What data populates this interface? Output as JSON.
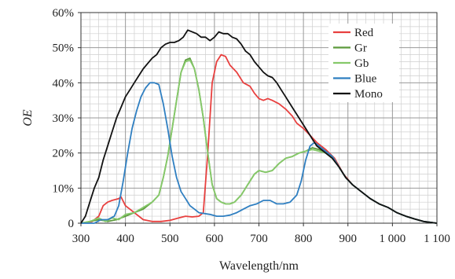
{
  "chart_data": {
    "type": "line",
    "title": "",
    "xlabel": "Wavelength/nm",
    "ylabel": "OE",
    "xlim": [
      300,
      1100
    ],
    "ylim": [
      0,
      60
    ],
    "grid": true,
    "legend_position": "top-right",
    "x_tick_labels": [
      "300",
      "400",
      "500",
      "600",
      "700",
      "800",
      "900",
      "1 000",
      "1 100"
    ],
    "y_tick_labels": [
      "0",
      "10%",
      "20%",
      "30%",
      "40%",
      "50%",
      "60%"
    ],
    "series": [
      {
        "name": "Red",
        "color": "#e8403f",
        "points": [
          [
            300,
            0
          ],
          [
            325,
            0.5
          ],
          [
            340,
            2
          ],
          [
            350,
            5
          ],
          [
            360,
            6
          ],
          [
            370,
            6.5
          ],
          [
            385,
            7
          ],
          [
            390,
            7.5
          ],
          [
            400,
            5
          ],
          [
            420,
            3
          ],
          [
            440,
            1
          ],
          [
            460,
            0.5
          ],
          [
            480,
            0.5
          ],
          [
            500,
            0.8
          ],
          [
            520,
            1.5
          ],
          [
            535,
            2
          ],
          [
            550,
            1.8
          ],
          [
            565,
            2
          ],
          [
            575,
            3
          ],
          [
            585,
            20
          ],
          [
            595,
            40
          ],
          [
            605,
            46
          ],
          [
            615,
            48
          ],
          [
            625,
            47.5
          ],
          [
            635,
            45
          ],
          [
            650,
            43
          ],
          [
            665,
            40
          ],
          [
            680,
            39
          ],
          [
            690,
            37
          ],
          [
            700,
            35.5
          ],
          [
            710,
            35
          ],
          [
            720,
            35.5
          ],
          [
            730,
            35
          ],
          [
            745,
            34
          ],
          [
            760,
            32.5
          ],
          [
            775,
            30.5
          ],
          [
            785,
            28.5
          ],
          [
            800,
            27
          ],
          [
            815,
            25
          ],
          [
            830,
            23
          ],
          [
            850,
            21
          ],
          [
            870,
            18.5
          ],
          [
            890,
            14
          ],
          [
            910,
            11
          ],
          [
            930,
            9
          ],
          [
            950,
            7
          ],
          [
            970,
            5.5
          ],
          [
            990,
            4.5
          ],
          [
            1010,
            3
          ],
          [
            1030,
            2
          ],
          [
            1050,
            1.2
          ],
          [
            1070,
            0.5
          ],
          [
            1100,
            0
          ]
        ]
      },
      {
        "name": "Gr",
        "color": "#5c9a3c",
        "points": [
          [
            300,
            0
          ],
          [
            320,
            0.5
          ],
          [
            340,
            1
          ],
          [
            360,
            0.5
          ],
          [
            380,
            1
          ],
          [
            400,
            2
          ],
          [
            420,
            3
          ],
          [
            440,
            4
          ],
          [
            460,
            6
          ],
          [
            475,
            8
          ],
          [
            485,
            13
          ],
          [
            495,
            19
          ],
          [
            505,
            27
          ],
          [
            515,
            35
          ],
          [
            525,
            43
          ],
          [
            535,
            46.5
          ],
          [
            545,
            47
          ],
          [
            555,
            44
          ],
          [
            565,
            38
          ],
          [
            575,
            30
          ],
          [
            585,
            20
          ],
          [
            595,
            11
          ],
          [
            605,
            7
          ],
          [
            615,
            6
          ],
          [
            625,
            5.5
          ],
          [
            635,
            5.5
          ],
          [
            645,
            6
          ],
          [
            660,
            8
          ],
          [
            675,
            11
          ],
          [
            690,
            14
          ],
          [
            700,
            15
          ],
          [
            715,
            14.5
          ],
          [
            730,
            15
          ],
          [
            745,
            17
          ],
          [
            760,
            18.5
          ],
          [
            775,
            19
          ],
          [
            790,
            20
          ],
          [
            805,
            20.5
          ],
          [
            820,
            21.5
          ],
          [
            835,
            21
          ],
          [
            850,
            20
          ],
          [
            865,
            19
          ],
          [
            880,
            16
          ],
          [
            895,
            13
          ],
          [
            910,
            11
          ],
          [
            930,
            9
          ],
          [
            950,
            7
          ],
          [
            970,
            5.5
          ],
          [
            990,
            4.5
          ],
          [
            1010,
            3
          ],
          [
            1030,
            2
          ],
          [
            1050,
            1.2
          ],
          [
            1070,
            0.5
          ],
          [
            1100,
            0
          ]
        ]
      },
      {
        "name": "Gb",
        "color": "#86c96a",
        "points": [
          [
            300,
            0
          ],
          [
            320,
            0.5
          ],
          [
            340,
            1.5
          ],
          [
            355,
            0.5
          ],
          [
            370,
            1.5
          ],
          [
            385,
            1
          ],
          [
            400,
            2.5
          ],
          [
            420,
            3
          ],
          [
            440,
            4.5
          ],
          [
            460,
            6
          ],
          [
            475,
            8
          ],
          [
            485,
            13
          ],
          [
            495,
            19
          ],
          [
            505,
            27
          ],
          [
            515,
            35
          ],
          [
            525,
            43
          ],
          [
            535,
            46
          ],
          [
            545,
            46.5
          ],
          [
            555,
            44
          ],
          [
            565,
            38
          ],
          [
            575,
            30
          ],
          [
            585,
            20
          ],
          [
            595,
            11
          ],
          [
            605,
            7
          ],
          [
            615,
            6
          ],
          [
            625,
            5.5
          ],
          [
            635,
            5.5
          ],
          [
            645,
            6
          ],
          [
            660,
            8
          ],
          [
            675,
            11
          ],
          [
            690,
            14
          ],
          [
            700,
            15
          ],
          [
            715,
            14.5
          ],
          [
            730,
            15
          ],
          [
            745,
            17
          ],
          [
            760,
            18.5
          ],
          [
            775,
            19
          ],
          [
            790,
            20
          ],
          [
            805,
            20.5
          ],
          [
            820,
            21
          ],
          [
            835,
            20.5
          ],
          [
            850,
            20
          ],
          [
            865,
            18.5
          ],
          [
            880,
            16
          ],
          [
            895,
            13
          ],
          [
            910,
            11
          ],
          [
            930,
            9
          ],
          [
            950,
            7
          ],
          [
            970,
            5.5
          ],
          [
            990,
            4.5
          ],
          [
            1010,
            3
          ],
          [
            1030,
            2
          ],
          [
            1050,
            1.2
          ],
          [
            1070,
            0.5
          ],
          [
            1100,
            0
          ]
        ]
      },
      {
        "name": "Blue",
        "color": "#2f7fc1",
        "points": [
          [
            300,
            0
          ],
          [
            330,
            0
          ],
          [
            345,
            1
          ],
          [
            360,
            1
          ],
          [
            375,
            2
          ],
          [
            385,
            5
          ],
          [
            395,
            12
          ],
          [
            405,
            20
          ],
          [
            415,
            27
          ],
          [
            425,
            32
          ],
          [
            435,
            36
          ],
          [
            445,
            38.5
          ],
          [
            455,
            40
          ],
          [
            465,
            40
          ],
          [
            475,
            39.5
          ],
          [
            485,
            34
          ],
          [
            495,
            27
          ],
          [
            505,
            19
          ],
          [
            515,
            13
          ],
          [
            525,
            9
          ],
          [
            535,
            7
          ],
          [
            545,
            5
          ],
          [
            555,
            4
          ],
          [
            565,
            3
          ],
          [
            575,
            2.8
          ],
          [
            590,
            2.5
          ],
          [
            605,
            2
          ],
          [
            620,
            2
          ],
          [
            635,
            2.3
          ],
          [
            650,
            3
          ],
          [
            665,
            4
          ],
          [
            680,
            5
          ],
          [
            695,
            5.5
          ],
          [
            710,
            6.5
          ],
          [
            725,
            6.5
          ],
          [
            740,
            5.5
          ],
          [
            755,
            5.5
          ],
          [
            770,
            6
          ],
          [
            785,
            8
          ],
          [
            795,
            12
          ],
          [
            805,
            18
          ],
          [
            815,
            22
          ],
          [
            825,
            23
          ],
          [
            835,
            22
          ],
          [
            850,
            20.5
          ],
          [
            865,
            19
          ],
          [
            880,
            16
          ],
          [
            895,
            13
          ],
          [
            910,
            11
          ],
          [
            930,
            9
          ],
          [
            950,
            7
          ],
          [
            970,
            5.5
          ],
          [
            990,
            4.5
          ],
          [
            1010,
            3
          ],
          [
            1030,
            2
          ],
          [
            1050,
            1.2
          ],
          [
            1070,
            0.5
          ],
          [
            1100,
            0
          ]
        ]
      },
      {
        "name": "Mono",
        "color": "#111111",
        "points": [
          [
            300,
            0
          ],
          [
            310,
            2
          ],
          [
            320,
            6
          ],
          [
            330,
            10
          ],
          [
            340,
            13
          ],
          [
            350,
            18
          ],
          [
            360,
            22
          ],
          [
            370,
            26
          ],
          [
            380,
            30
          ],
          [
            390,
            33
          ],
          [
            400,
            36
          ],
          [
            410,
            38
          ],
          [
            420,
            40
          ],
          [
            430,
            42
          ],
          [
            440,
            44
          ],
          [
            450,
            45.5
          ],
          [
            460,
            47
          ],
          [
            470,
            48
          ],
          [
            480,
            50
          ],
          [
            490,
            51
          ],
          [
            500,
            51.5
          ],
          [
            510,
            51.5
          ],
          [
            520,
            52
          ],
          [
            530,
            53
          ],
          [
            540,
            55
          ],
          [
            550,
            54.5
          ],
          [
            560,
            54
          ],
          [
            570,
            53
          ],
          [
            580,
            53
          ],
          [
            590,
            52
          ],
          [
            600,
            53
          ],
          [
            610,
            54.5
          ],
          [
            620,
            54
          ],
          [
            630,
            54
          ],
          [
            640,
            53
          ],
          [
            650,
            52.5
          ],
          [
            660,
            51
          ],
          [
            670,
            49
          ],
          [
            680,
            48
          ],
          [
            690,
            46
          ],
          [
            700,
            44.5
          ],
          [
            710,
            43
          ],
          [
            720,
            42
          ],
          [
            730,
            41.5
          ],
          [
            740,
            40
          ],
          [
            750,
            38
          ],
          [
            760,
            36
          ],
          [
            770,
            34
          ],
          [
            780,
            32
          ],
          [
            790,
            30
          ],
          [
            800,
            28
          ],
          [
            810,
            26
          ],
          [
            820,
            24
          ],
          [
            830,
            22
          ],
          [
            840,
            21
          ],
          [
            850,
            20
          ],
          [
            865,
            18.5
          ],
          [
            880,
            16
          ],
          [
            895,
            13
          ],
          [
            910,
            11
          ],
          [
            930,
            9
          ],
          [
            950,
            7
          ],
          [
            970,
            5.5
          ],
          [
            990,
            4.5
          ],
          [
            1010,
            3
          ],
          [
            1030,
            2
          ],
          [
            1050,
            1.2
          ],
          [
            1070,
            0.5
          ],
          [
            1100,
            0
          ]
        ]
      }
    ]
  }
}
